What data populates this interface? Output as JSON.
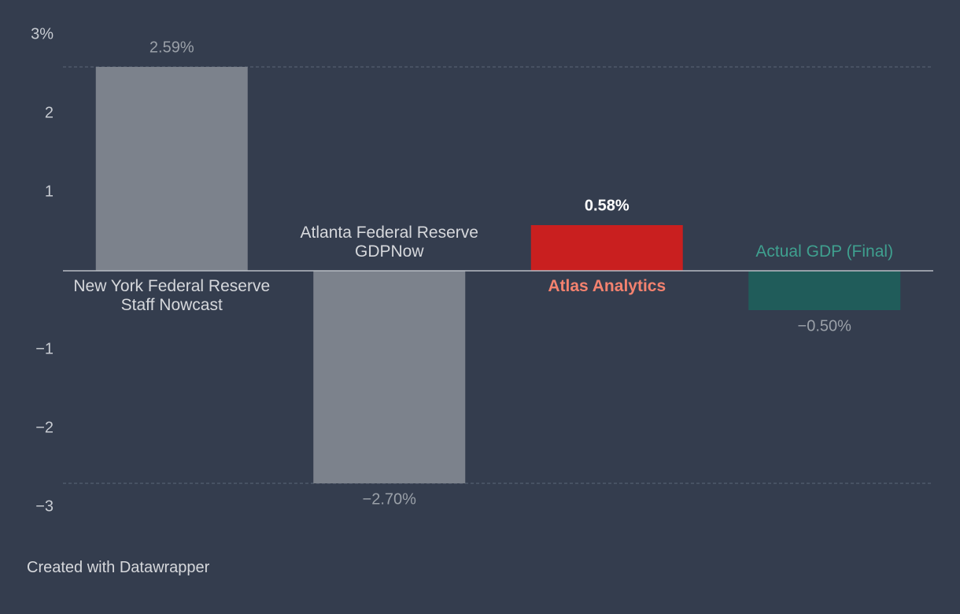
{
  "chart_data": {
    "type": "bar",
    "categories": [
      "New York Federal Reserve Staff Nowcast",
      "Atlanta Federal Reserve GDPNow",
      "Atlas Analytics",
      "Actual GDP (Final)"
    ],
    "values": [
      2.59,
      -2.7,
      0.58,
      -0.5
    ],
    "value_labels": [
      "2.59%",
      "−2.70%",
      "0.58%",
      "−0.50%"
    ],
    "colors": [
      "#7c828c",
      "#7c828c",
      "#c91f1f",
      "#205c5a"
    ],
    "category_label_colors": [
      "#d6d8dc",
      "#d6d8dc",
      "#f4826f",
      "#3fa08f"
    ],
    "value_label_colors": [
      "#9aa0a8",
      "#9aa0a8",
      "#ffffff",
      "#9aa0a8"
    ],
    "ylim": [
      -3,
      3
    ],
    "yticks": [
      {
        "value": 3,
        "label": "3%"
      },
      2,
      1,
      {
        "value": -1,
        "label": "−1"
      },
      {
        "value": -2,
        "label": "−2"
      },
      {
        "value": -3,
        "label": "−3"
      }
    ],
    "footer": "Created with Datawrapper"
  }
}
